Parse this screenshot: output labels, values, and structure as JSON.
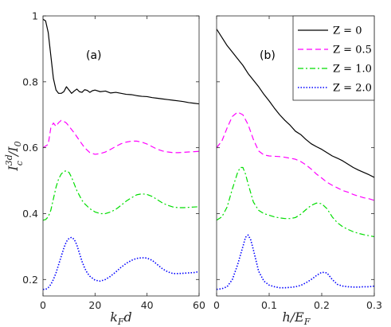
{
  "chart_data": [
    {
      "panel": "(a)",
      "type": "line",
      "xlabel_main": "k",
      "xlabel_sub": "F",
      "xlabel_tail": "d",
      "ylabel_main": "I",
      "ylabel_sub": "c",
      "ylabel_sup": "3d",
      "ylabel_den": "/I",
      "ylabel_den_sub": "0",
      "xlim": [
        0,
        60
      ],
      "ylim": [
        0.15,
        1.0
      ],
      "xticks": [
        0,
        20,
        40,
        60
      ],
      "xtick_labels": [
        "0",
        "20",
        "40",
        "60"
      ],
      "yticks": [
        0.2,
        0.4,
        0.6,
        0.8,
        1.0
      ],
      "ytick_labels": [
        "0.2",
        "0.4",
        "0.6",
        "0.8",
        "1"
      ],
      "grid": false,
      "series": [
        {
          "name": "Z = 0",
          "color": "#000000",
          "dash": "solid",
          "x": [
            0,
            1,
            2,
            3,
            4,
            5,
            6,
            7,
            8,
            9,
            10,
            11,
            12,
            13,
            14,
            15,
            16,
            17,
            18,
            19,
            20,
            22,
            24,
            26,
            28,
            30,
            32,
            34,
            36,
            38,
            40,
            42,
            44,
            46,
            48,
            50,
            52,
            54,
            56,
            58,
            60
          ],
          "y": [
            0.99,
            0.985,
            0.95,
            0.88,
            0.81,
            0.775,
            0.765,
            0.765,
            0.77,
            0.785,
            0.775,
            0.765,
            0.772,
            0.778,
            0.77,
            0.768,
            0.776,
            0.774,
            0.768,
            0.773,
            0.775,
            0.77,
            0.772,
            0.766,
            0.768,
            0.765,
            0.762,
            0.761,
            0.758,
            0.756,
            0.755,
            0.752,
            0.75,
            0.748,
            0.746,
            0.744,
            0.742,
            0.74,
            0.737,
            0.735,
            0.733
          ]
        },
        {
          "name": "Z = 0.5",
          "color": "#ff00ff",
          "dash": "dashed",
          "x": [
            0,
            2,
            3,
            4,
            5,
            6,
            7,
            8,
            9,
            10,
            12,
            14,
            16,
            18,
            20,
            22,
            24,
            26,
            28,
            30,
            32,
            34,
            36,
            38,
            40,
            42,
            44,
            46,
            48,
            50,
            52,
            54,
            56,
            58,
            60
          ],
          "y": [
            0.6,
            0.61,
            0.66,
            0.675,
            0.665,
            0.676,
            0.683,
            0.68,
            0.675,
            0.665,
            0.645,
            0.622,
            0.6,
            0.585,
            0.58,
            0.582,
            0.587,
            0.595,
            0.604,
            0.612,
            0.617,
            0.62,
            0.62,
            0.617,
            0.611,
            0.603,
            0.595,
            0.59,
            0.587,
            0.585,
            0.585,
            0.586,
            0.587,
            0.588,
            0.589
          ]
        },
        {
          "name": "Z = 1.0",
          "color": "#00dd00",
          "dash": "dashdot",
          "x": [
            0,
            1,
            2,
            3,
            4,
            5,
            6,
            7,
            8,
            9,
            10,
            11,
            12,
            13,
            14,
            15,
            16,
            18,
            20,
            22,
            24,
            26,
            28,
            30,
            32,
            34,
            36,
            38,
            40,
            42,
            44,
            46,
            48,
            50,
            52,
            54,
            56,
            58,
            60
          ],
          "y": [
            0.38,
            0.382,
            0.39,
            0.41,
            0.445,
            0.48,
            0.505,
            0.52,
            0.528,
            0.53,
            0.525,
            0.51,
            0.49,
            0.47,
            0.455,
            0.44,
            0.43,
            0.415,
            0.405,
            0.4,
            0.4,
            0.405,
            0.413,
            0.425,
            0.438,
            0.448,
            0.457,
            0.46,
            0.458,
            0.452,
            0.442,
            0.432,
            0.425,
            0.42,
            0.418,
            0.418,
            0.419,
            0.42,
            0.421
          ]
        },
        {
          "name": "Z = 2.0",
          "color": "#0000ff",
          "dash": "dotted",
          "x": [
            0,
            1,
            2,
            3,
            4,
            5,
            6,
            7,
            8,
            9,
            10,
            11,
            12,
            13,
            14,
            15,
            16,
            17,
            18,
            20,
            22,
            24,
            26,
            28,
            30,
            32,
            34,
            36,
            38,
            40,
            42,
            44,
            46,
            48,
            50,
            52,
            54,
            56,
            58,
            60
          ],
          "y": [
            0.17,
            0.17,
            0.175,
            0.185,
            0.2,
            0.22,
            0.245,
            0.27,
            0.295,
            0.315,
            0.325,
            0.328,
            0.322,
            0.305,
            0.28,
            0.255,
            0.235,
            0.22,
            0.21,
            0.198,
            0.195,
            0.2,
            0.21,
            0.223,
            0.237,
            0.249,
            0.258,
            0.264,
            0.266,
            0.265,
            0.258,
            0.245,
            0.232,
            0.223,
            0.218,
            0.218,
            0.219,
            0.22,
            0.221,
            0.224
          ]
        }
      ]
    },
    {
      "panel": "(b)",
      "type": "line",
      "xlabel_main": "h/E",
      "xlabel_sub": "F",
      "xlim": [
        0,
        0.3
      ],
      "ylim": [
        0.15,
        1.0
      ],
      "xticks": [
        0,
        0.1,
        0.2,
        0.3
      ],
      "xtick_labels": [
        "0",
        "0.1",
        "0.2",
        "0.3"
      ],
      "yticks": [
        0.2,
        0.4,
        0.6,
        0.8,
        1.0
      ],
      "grid": false,
      "legend_location": "top-right",
      "series": [
        {
          "name": "Z = 0",
          "color": "#000000",
          "dash": "solid",
          "x": [
            0,
            0.01,
            0.02,
            0.03,
            0.04,
            0.05,
            0.06,
            0.07,
            0.08,
            0.09,
            0.1,
            0.11,
            0.12,
            0.13,
            0.14,
            0.15,
            0.16,
            0.17,
            0.18,
            0.19,
            0.2,
            0.21,
            0.22,
            0.23,
            0.24,
            0.25,
            0.26,
            0.27,
            0.28,
            0.29,
            0.3
          ],
          "y": [
            0.96,
            0.935,
            0.91,
            0.89,
            0.87,
            0.85,
            0.825,
            0.805,
            0.785,
            0.762,
            0.742,
            0.72,
            0.7,
            0.683,
            0.668,
            0.65,
            0.64,
            0.625,
            0.612,
            0.603,
            0.595,
            0.585,
            0.575,
            0.568,
            0.56,
            0.55,
            0.54,
            0.532,
            0.525,
            0.518,
            0.51
          ]
        },
        {
          "name": "Z = 0.5",
          "color": "#ff00ff",
          "dash": "dashed",
          "x": [
            0,
            0.01,
            0.02,
            0.03,
            0.04,
            0.05,
            0.06,
            0.07,
            0.08,
            0.09,
            0.1,
            0.11,
            0.12,
            0.13,
            0.14,
            0.15,
            0.16,
            0.17,
            0.18,
            0.19,
            0.2,
            0.21,
            0.22,
            0.23,
            0.24,
            0.25,
            0.26,
            0.27,
            0.28,
            0.29,
            0.3
          ],
          "y": [
            0.6,
            0.62,
            0.66,
            0.695,
            0.708,
            0.7,
            0.67,
            0.625,
            0.59,
            0.578,
            0.575,
            0.574,
            0.573,
            0.571,
            0.568,
            0.565,
            0.558,
            0.548,
            0.535,
            0.52,
            0.508,
            0.495,
            0.486,
            0.478,
            0.47,
            0.465,
            0.458,
            0.453,
            0.448,
            0.445,
            0.44
          ]
        },
        {
          "name": "Z = 1.0",
          "color": "#00dd00",
          "dash": "dashdot",
          "x": [
            0,
            0.01,
            0.02,
            0.03,
            0.04,
            0.045,
            0.05,
            0.055,
            0.06,
            0.07,
            0.08,
            0.09,
            0.1,
            0.11,
            0.12,
            0.13,
            0.14,
            0.15,
            0.16,
            0.17,
            0.18,
            0.19,
            0.2,
            0.21,
            0.22,
            0.23,
            0.24,
            0.25,
            0.26,
            0.27,
            0.28,
            0.29,
            0.3
          ],
          "y": [
            0.38,
            0.39,
            0.42,
            0.475,
            0.525,
            0.54,
            0.54,
            0.52,
            0.49,
            0.435,
            0.41,
            0.4,
            0.395,
            0.39,
            0.387,
            0.385,
            0.385,
            0.388,
            0.398,
            0.412,
            0.425,
            0.432,
            0.43,
            0.415,
            0.39,
            0.372,
            0.36,
            0.352,
            0.345,
            0.34,
            0.336,
            0.333,
            0.33
          ]
        },
        {
          "name": "Z = 2.0",
          "color": "#0000ff",
          "dash": "dotted",
          "x": [
            0,
            0.01,
            0.02,
            0.03,
            0.04,
            0.05,
            0.055,
            0.06,
            0.065,
            0.07,
            0.08,
            0.09,
            0.1,
            0.11,
            0.12,
            0.13,
            0.14,
            0.15,
            0.16,
            0.17,
            0.18,
            0.19,
            0.2,
            0.21,
            0.22,
            0.23,
            0.24,
            0.25,
            0.26,
            0.27,
            0.28,
            0.29,
            0.3
          ],
          "y": [
            0.17,
            0.172,
            0.178,
            0.2,
            0.245,
            0.3,
            0.328,
            0.335,
            0.32,
            0.29,
            0.225,
            0.195,
            0.183,
            0.178,
            0.175,
            0.175,
            0.176,
            0.178,
            0.182,
            0.19,
            0.2,
            0.212,
            0.222,
            0.22,
            0.2,
            0.185,
            0.18,
            0.178,
            0.177,
            0.177,
            0.178,
            0.178,
            0.18
          ]
        }
      ]
    }
  ]
}
